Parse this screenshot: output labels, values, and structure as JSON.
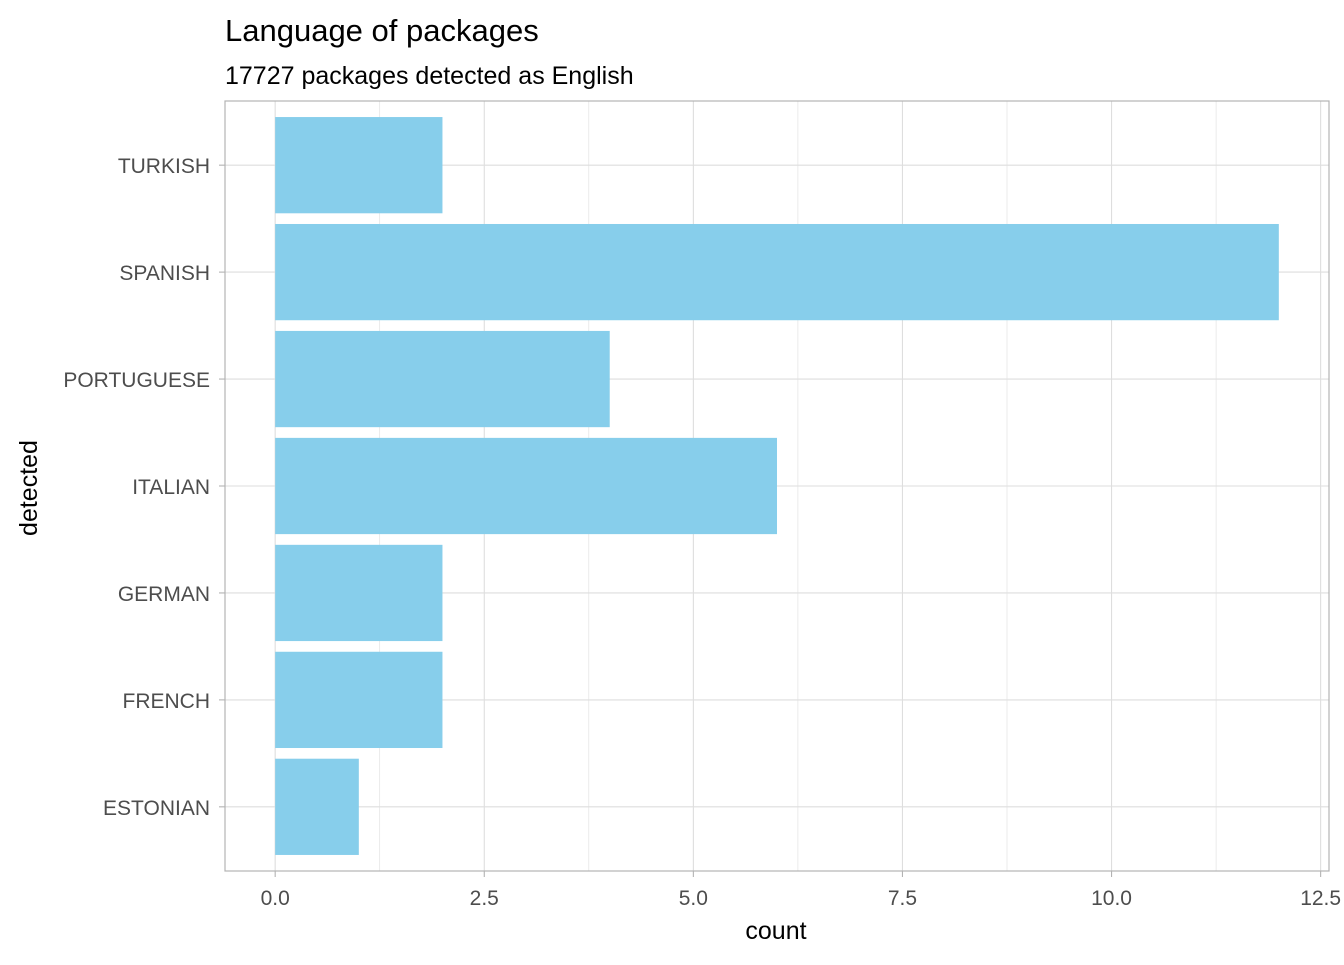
{
  "chart_data": {
    "type": "bar",
    "orientation": "horizontal",
    "title": "Language of packages",
    "subtitle": "17727 packages detected as English",
    "xlabel": "count",
    "ylabel": "detected",
    "categories": [
      "ESTONIAN",
      "FRENCH",
      "GERMAN",
      "ITALIAN",
      "PORTUGUESE",
      "SPANISH",
      "TURKISH"
    ],
    "values": [
      1,
      2,
      2,
      6,
      4,
      12,
      2
    ],
    "xlim": [
      -0.6,
      12.6
    ],
    "x_ticks": [
      0.0,
      2.5,
      5.0,
      7.5,
      10.0,
      12.5
    ],
    "x_tick_labels": [
      "0.0",
      "2.5",
      "5.0",
      "7.5",
      "10.0",
      "12.5"
    ],
    "grid": true,
    "bar_color": "#87CEEB",
    "grid_color": "#DEDEDE",
    "panel_border_color": "#B3B3B3",
    "axis_text_color": "#4D4D4D",
    "title_color": "#000000"
  }
}
